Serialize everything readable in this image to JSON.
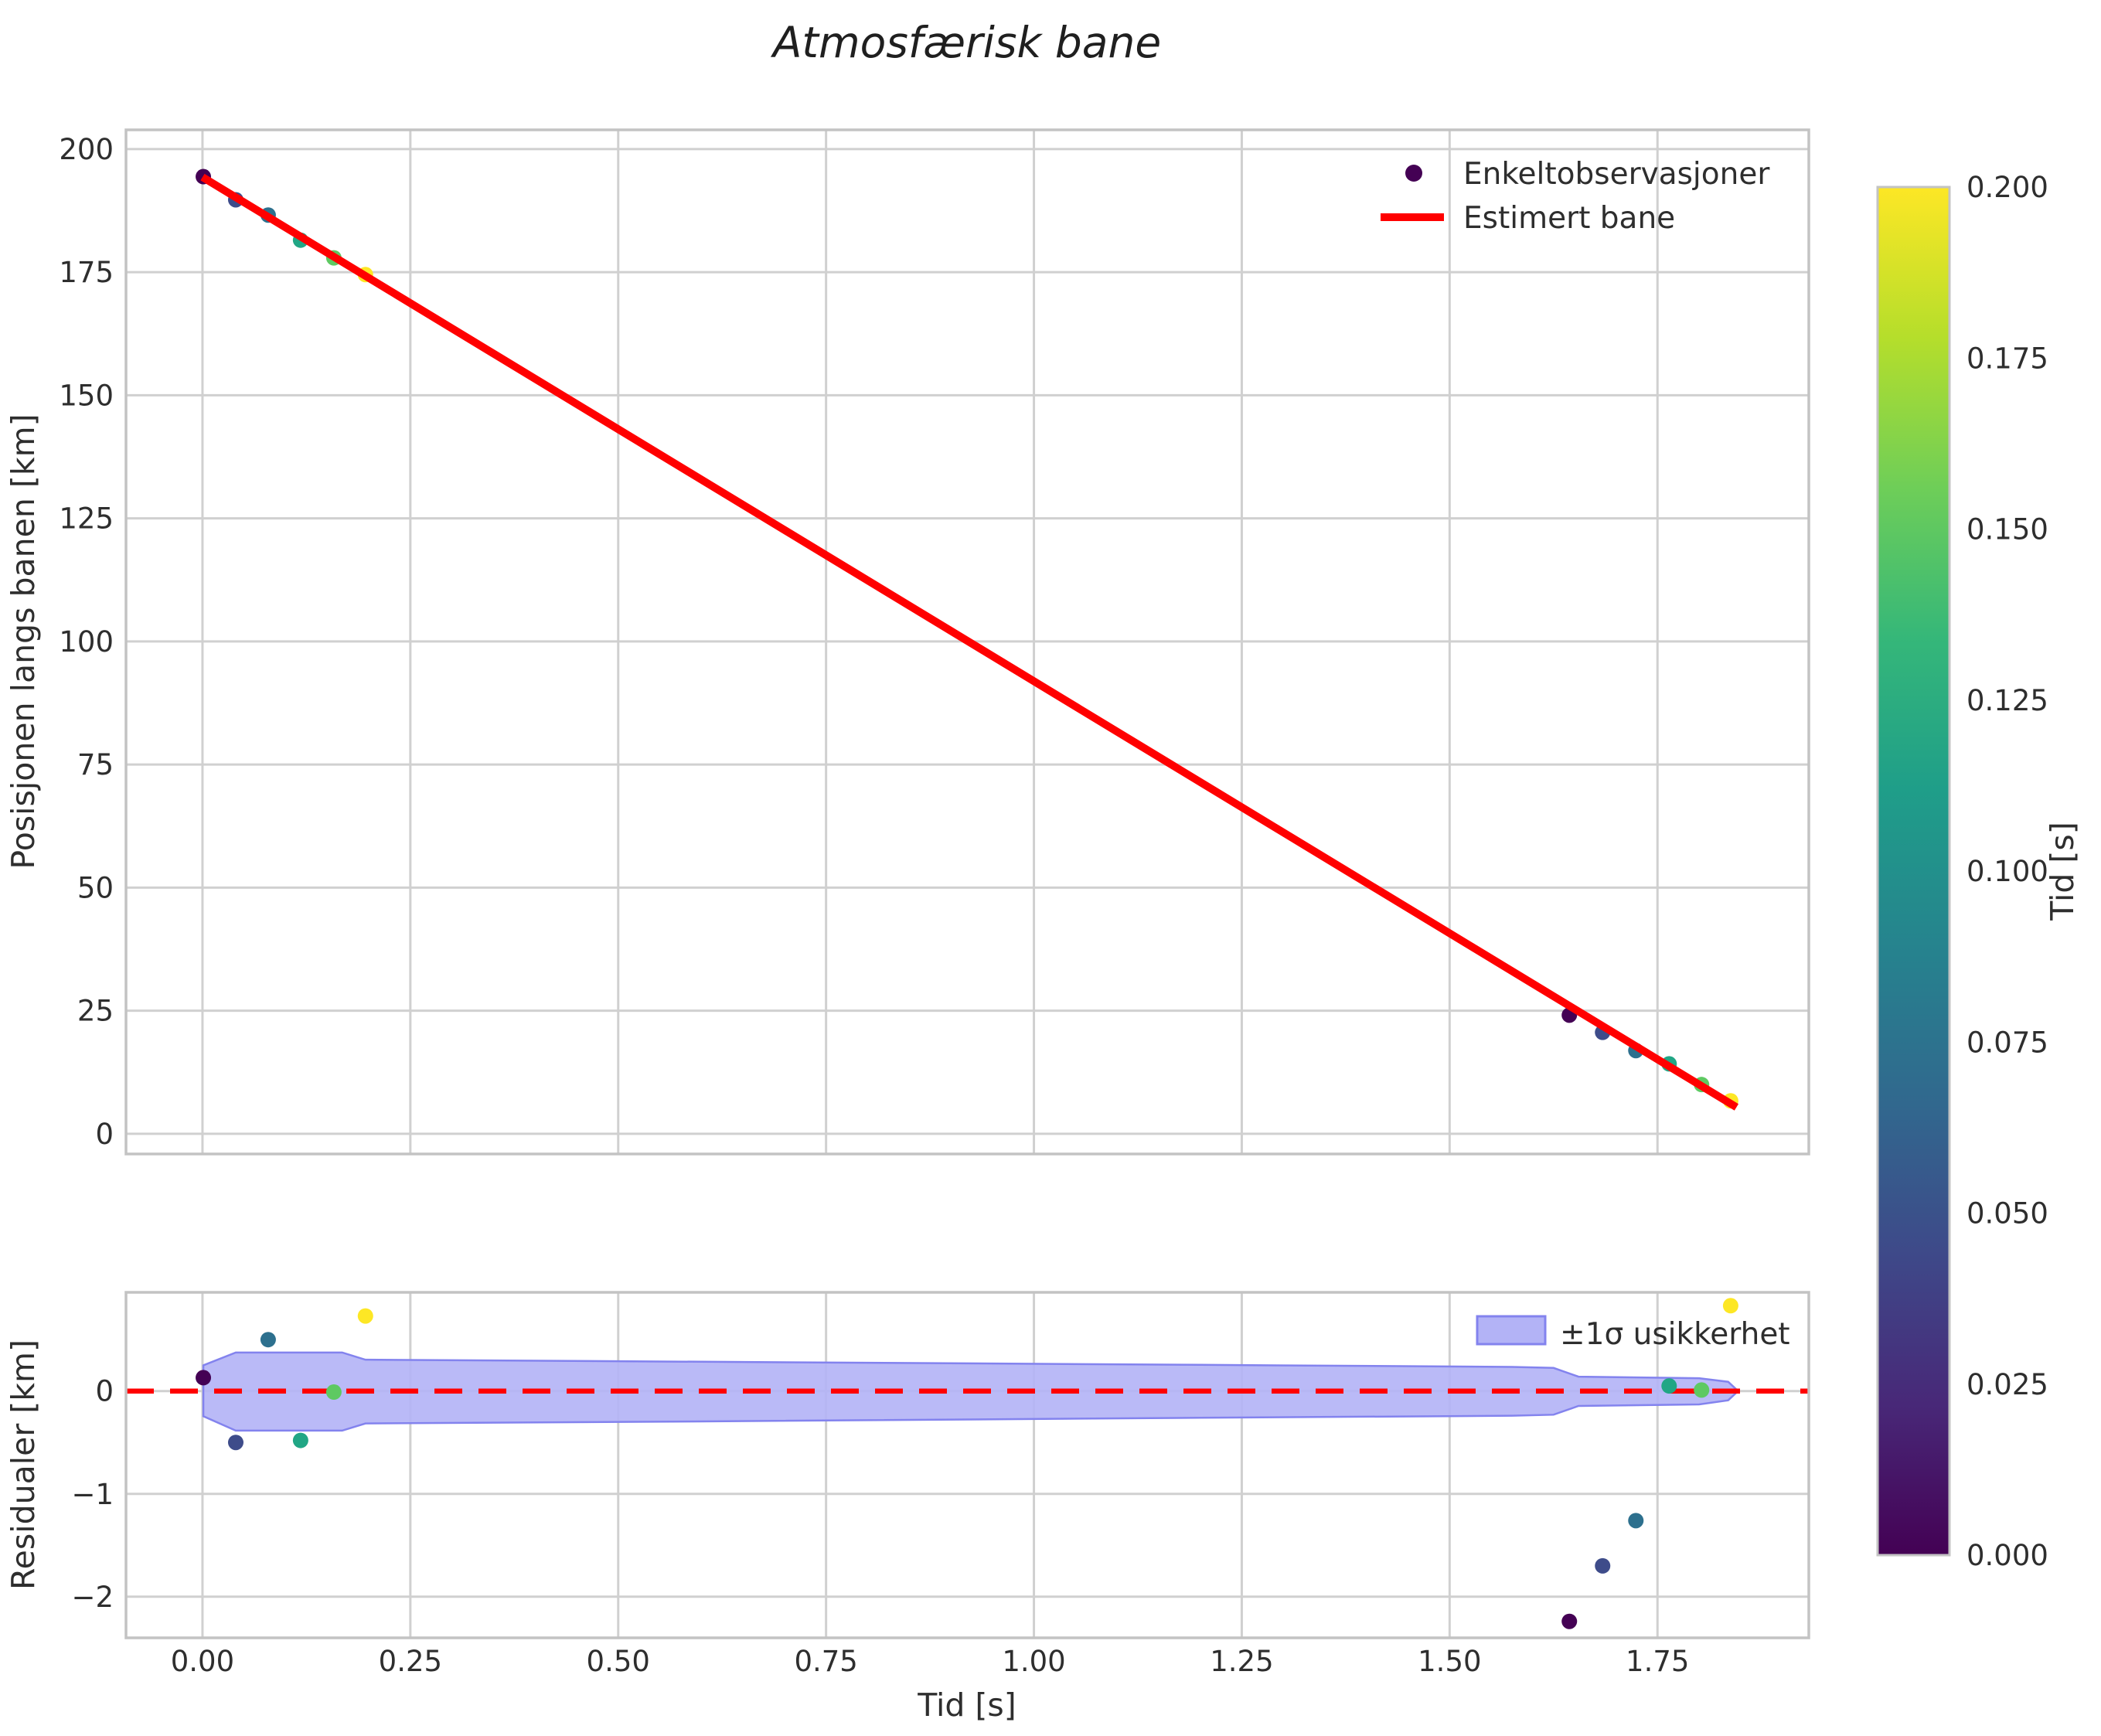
{
  "title": "Atmosfærisk bane",
  "figure": {
    "background": "#ffffff",
    "grid_color": "#d0d0d0",
    "spine_color": "#c3c3c3",
    "text_color": "#2e2e2e"
  },
  "chart_data": [
    {
      "id": "trajectory",
      "type": "scatter",
      "title": "Atmosfærisk bane",
      "xlabel": "",
      "ylabel": "Posisjonen langs banen [km]",
      "xlim": [
        -0.092,
        1.932
      ],
      "ylim": [
        -4.1,
        203.9
      ],
      "grid": true,
      "xticks": {
        "values": [
          0.0,
          0.25,
          0.5,
          0.75,
          1.0,
          1.25,
          1.5,
          1.75
        ],
        "labels": [],
        "labels_visible": false
      },
      "yticks": {
        "values": [
          0,
          25,
          50,
          75,
          100,
          125,
          150,
          175,
          200
        ],
        "labels": [
          "0",
          "25",
          "50",
          "75",
          "100",
          "125",
          "150",
          "175",
          "200"
        ]
      },
      "legend": {
        "position": "upper right",
        "entries": [
          {
            "label": "Enkeltobservasjoner",
            "type": "marker",
            "color": "#440154"
          },
          {
            "label": "Estimert bane",
            "type": "line",
            "color": "#ff0000"
          }
        ]
      },
      "scatter": {
        "name": "Enkeltobservasjoner",
        "marker_radius": 10,
        "color_by": "Tid [s]",
        "colormap": "viridis",
        "points": [
          {
            "t": 0.001,
            "s": 194.4,
            "color": "#440154"
          },
          {
            "t": 0.04,
            "s": 189.7,
            "color": "#3e4c8a"
          },
          {
            "t": 0.079,
            "s": 186.6,
            "color": "#2d708e"
          },
          {
            "t": 0.118,
            "s": 181.5,
            "color": "#21a685"
          },
          {
            "t": 0.158,
            "s": 177.9,
            "color": "#5ec962"
          },
          {
            "t": 0.196,
            "s": 174.5,
            "color": "#fde725"
          },
          {
            "t": 1.644,
            "s": 24.1,
            "color": "#440154"
          },
          {
            "t": 1.684,
            "s": 20.6,
            "color": "#3e4c8a"
          },
          {
            "t": 1.724,
            "s": 16.9,
            "color": "#2d708e"
          },
          {
            "t": 1.764,
            "s": 14.2,
            "color": "#21a685"
          },
          {
            "t": 1.803,
            "s": 10.0,
            "color": "#5ec962"
          },
          {
            "t": 1.838,
            "s": 6.7,
            "color": "#fde725"
          }
        ]
      },
      "line": {
        "name": "Estimert bane",
        "color": "#ff0000",
        "width": 10,
        "points": [
          [
            0.0,
            194.3
          ],
          [
            1.845,
            5.4
          ]
        ]
      }
    },
    {
      "id": "residuals",
      "type": "scatter",
      "xlabel": "Tid [s]",
      "ylabel": "Residualer [km]",
      "xlim": [
        -0.092,
        1.932
      ],
      "ylim": [
        -2.4,
        0.96
      ],
      "grid": true,
      "xticks": {
        "values": [
          0.0,
          0.25,
          0.5,
          0.75,
          1.0,
          1.25,
          1.5,
          1.75
        ],
        "labels": [
          "0.00",
          "0.25",
          "0.50",
          "0.75",
          "1.00",
          "1.25",
          "1.50",
          "1.75"
        ],
        "labels_visible": true
      },
      "yticks": {
        "values": [
          0,
          -1,
          -2
        ],
        "labels": [
          "0",
          "−1",
          "−2"
        ]
      },
      "legend": {
        "position": "upper right",
        "entries": [
          {
            "label": "±1σ usikkerhet",
            "type": "patch",
            "fill": "#b3b3f6",
            "stroke": "#8383ee"
          }
        ]
      },
      "zero_line": {
        "color": "#ff0000",
        "style": "dashed",
        "width": 6.5,
        "y": 0
      },
      "band": {
        "label": "±1σ usikkerhet",
        "fill": "#b3b3f6",
        "stroke": "#8383ee",
        "top": [
          [
            0.001,
            0.25
          ],
          [
            0.04,
            0.375
          ],
          [
            0.168,
            0.375
          ],
          [
            0.196,
            0.305
          ],
          [
            0.6,
            0.285
          ],
          [
            1.2,
            0.255
          ],
          [
            1.575,
            0.235
          ],
          [
            1.625,
            0.225
          ],
          [
            1.655,
            0.14
          ],
          [
            1.8,
            0.125
          ],
          [
            1.835,
            0.09
          ],
          [
            1.845,
            0.015
          ]
        ],
        "bottom": [
          [
            0.001,
            -0.245
          ],
          [
            0.04,
            -0.385
          ],
          [
            0.168,
            -0.385
          ],
          [
            0.196,
            -0.315
          ],
          [
            0.6,
            -0.295
          ],
          [
            1.2,
            -0.26
          ],
          [
            1.575,
            -0.24
          ],
          [
            1.625,
            -0.23
          ],
          [
            1.655,
            -0.145
          ],
          [
            1.8,
            -0.13
          ],
          [
            1.835,
            -0.09
          ],
          [
            1.845,
            -0.015
          ]
        ]
      },
      "scatter": {
        "marker_radius": 10,
        "points": [
          {
            "t": 0.001,
            "r": 0.13,
            "color": "#440154"
          },
          {
            "t": 0.04,
            "r": -0.5,
            "color": "#3e4c8a"
          },
          {
            "t": 0.079,
            "r": 0.5,
            "color": "#2d708e"
          },
          {
            "t": 0.118,
            "r": -0.48,
            "color": "#21a685"
          },
          {
            "t": 0.158,
            "r": -0.01,
            "color": "#5ec962"
          },
          {
            "t": 0.196,
            "r": 0.73,
            "color": "#fde725"
          },
          {
            "t": 1.644,
            "r": -2.24,
            "color": "#440154"
          },
          {
            "t": 1.684,
            "r": -1.7,
            "color": "#3e4c8a"
          },
          {
            "t": 1.724,
            "r": -1.26,
            "color": "#2d708e"
          },
          {
            "t": 1.764,
            "r": 0.05,
            "color": "#21a685"
          },
          {
            "t": 1.803,
            "r": 0.01,
            "color": "#5ec962"
          },
          {
            "t": 1.838,
            "r": 0.83,
            "color": "#fde725"
          }
        ]
      }
    },
    {
      "id": "colorbar",
      "type": "colorbar",
      "label": "Tid [s]",
      "range": [
        0.0,
        0.2
      ],
      "ticks": {
        "values": [
          0.0,
          0.025,
          0.05,
          0.075,
          0.1,
          0.125,
          0.15,
          0.175,
          0.2
        ],
        "labels": [
          "0.000",
          "0.025",
          "0.050",
          "0.075",
          "0.100",
          "0.125",
          "0.150",
          "0.175",
          "0.200"
        ]
      },
      "colormap": "viridis",
      "stops": [
        [
          0.0,
          "#440154"
        ],
        [
          0.11,
          "#482878"
        ],
        [
          0.22,
          "#3e4989"
        ],
        [
          0.33,
          "#31688e"
        ],
        [
          0.44,
          "#26828e"
        ],
        [
          0.56,
          "#1f9e89"
        ],
        [
          0.67,
          "#35b779"
        ],
        [
          0.78,
          "#6ece58"
        ],
        [
          0.89,
          "#b5de2b"
        ],
        [
          1.0,
          "#fde725"
        ]
      ]
    }
  ]
}
